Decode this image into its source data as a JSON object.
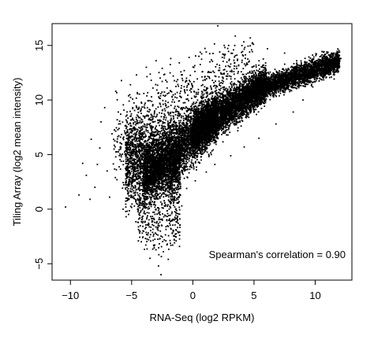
{
  "chart_data": {
    "type": "scatter",
    "title": "",
    "xlabel": "RNA-Seq (log2 RPKM)",
    "ylabel": "Tiling Array (log2 mean intensity)",
    "xlim": [
      -11.5,
      13.0
    ],
    "ylim": [
      -6.5,
      17.0
    ],
    "xticks": [
      -10,
      -5,
      0,
      5,
      10
    ],
    "yticks": [
      -5,
      0,
      5,
      10,
      15
    ],
    "xtick_labels": [
      "−10",
      "−5",
      "0",
      "5",
      "10"
    ],
    "ytick_labels": [
      "−5",
      "0",
      "5",
      "10",
      "15"
    ],
    "grid": false,
    "marker_color": "#000000",
    "annotation": "Spearman's correlation = 0.90",
    "annotation_position": "bottom-right",
    "spearman_correlation": 0.9,
    "points": [
      [
        -10.4,
        0.2
      ],
      [
        -9.3,
        1.3
      ],
      [
        -9.0,
        4.2
      ],
      [
        -8.7,
        3.1
      ],
      [
        -8.4,
        0.9
      ],
      [
        -8.3,
        6.4
      ],
      [
        -8.0,
        2.0
      ],
      [
        -7.8,
        4.1
      ],
      [
        -7.6,
        5.6
      ],
      [
        -7.5,
        8.0
      ],
      [
        -7.2,
        9.3
      ],
      [
        -7.0,
        3.5
      ],
      [
        -6.8,
        1.1
      ],
      [
        -6.6,
        6.9
      ],
      [
        -6.3,
        10.8
      ],
      [
        -6.2,
        2.7
      ],
      [
        -6.0,
        4.9
      ],
      [
        -5.9,
        8.7
      ],
      [
        -5.7,
        0.0
      ],
      [
        -5.5,
        6.1
      ],
      [
        -5.4,
        3.0
      ],
      [
        -5.2,
        9.9
      ],
      [
        -5.1,
        11.4
      ],
      [
        -5.0,
        1.6
      ],
      [
        -4.9,
        7.4
      ],
      [
        -4.8,
        4.6
      ],
      [
        -4.6,
        12.3
      ],
      [
        -4.5,
        -1.2
      ],
      [
        -4.4,
        9.2
      ],
      [
        -4.3,
        2.4
      ],
      [
        -4.2,
        5.8
      ],
      [
        -4.1,
        -2.6
      ],
      [
        -4.0,
        10.6
      ],
      [
        -3.9,
        3.7
      ],
      [
        -3.8,
        13.0
      ],
      [
        -3.7,
        -0.6
      ],
      [
        -3.6,
        8.2
      ],
      [
        -3.5,
        -4.5
      ],
      [
        -3.4,
        11.8
      ],
      [
        -3.3,
        1.2
      ],
      [
        -3.2,
        -3.3
      ],
      [
        -3.1,
        6.7
      ],
      [
        -3.0,
        13.6
      ],
      [
        -2.9,
        -1.8
      ],
      [
        -2.8,
        -5.2
      ],
      [
        -2.7,
        9.7
      ],
      [
        -2.6,
        -6.0
      ],
      [
        -2.5,
        12.9
      ],
      [
        -2.4,
        -3.9
      ],
      [
        -2.3,
        0.6
      ],
      [
        -2.2,
        -2.9
      ],
      [
        -2.1,
        11.1
      ],
      [
        -2.0,
        -4.6
      ],
      [
        -1.9,
        7.9
      ],
      [
        -1.8,
        13.8
      ],
      [
        -1.7,
        -1.0
      ],
      [
        -1.6,
        12.2
      ],
      [
        -1.5,
        0.9
      ],
      [
        -1.3,
        10.2
      ],
      [
        -1.1,
        13.4
      ],
      [
        -0.9,
        0.3
      ],
      [
        -0.7,
        12.7
      ],
      [
        -0.5,
        1.9
      ],
      [
        -0.3,
        13.9
      ],
      [
        -0.1,
        11.5
      ],
      [
        0.2,
        2.6
      ],
      [
        0.5,
        14.0
      ],
      [
        0.8,
        12.6
      ],
      [
        1.1,
        3.4
      ],
      [
        1.4,
        13.5
      ],
      [
        1.8,
        4.1
      ],
      [
        2.2,
        14.4
      ],
      [
        2.6,
        12.8
      ],
      [
        3.1,
        4.9
      ],
      [
        3.6,
        14.1
      ],
      [
        4.2,
        5.7
      ],
      [
        4.8,
        14.6
      ],
      [
        5.4,
        6.5
      ],
      [
        6.1,
        14.7
      ],
      [
        6.8,
        7.8
      ],
      [
        7.5,
        14.3
      ],
      [
        8.2,
        8.9
      ],
      [
        9.0,
        10.0
      ],
      [
        9.8,
        11.2
      ],
      [
        10.6,
        12.1
      ],
      [
        11.3,
        12.9
      ],
      [
        11.9,
        13.4
      ],
      [
        12.1,
        13.8
      ]
    ],
    "density_regions": [
      {
        "x": [
          -5.5,
          -1.0
        ],
        "y_center": 4.0,
        "y_spread": 2.8,
        "count": 2200
      },
      {
        "x": [
          -4.0,
          2.0
        ],
        "y_center_start": 3.0,
        "y_center_end": 8.5,
        "y_spread": 1.8,
        "count": 3800
      },
      {
        "x": [
          0.0,
          6.0
        ],
        "y_center_start": 7.0,
        "y_center_end": 11.5,
        "y_spread": 1.2,
        "count": 4200
      },
      {
        "x": [
          5.0,
          12.0
        ],
        "y_center_start": 10.8,
        "y_center_end": 13.6,
        "y_spread": 0.7,
        "count": 3000
      },
      {
        "x": [
          -6.5,
          5.0
        ],
        "y_center_start": 6.0,
        "y_center_end": 13.0,
        "y_spread": 2.6,
        "count": 900
      },
      {
        "x": [
          -4.5,
          -1.0
        ],
        "y_center": -1.5,
        "y_spread": 1.6,
        "count": 220
      }
    ]
  }
}
